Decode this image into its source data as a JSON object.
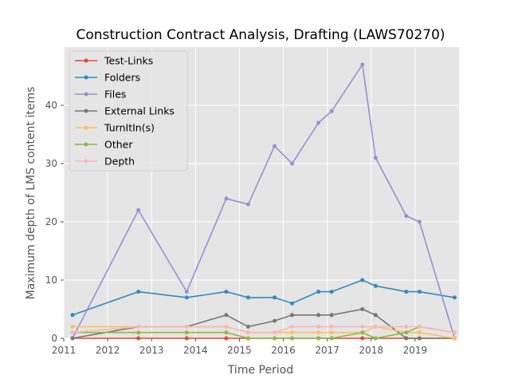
{
  "chart_data": {
    "type": "line",
    "title": "Construction Contract Analysis, Drafting (LAWS70270)",
    "xlabel": "Time Period",
    "ylabel": "Maximum depth of LMS content items",
    "xlim": [
      2011.0,
      2020.0
    ],
    "ylim": [
      0,
      50
    ],
    "x_ticks": [
      2011,
      2012,
      2013,
      2014,
      2015,
      2016,
      2017,
      2018,
      2019
    ],
    "y_ticks": [
      0,
      10,
      20,
      30,
      40
    ],
    "grid": true,
    "legend_position": "top-left",
    "background": "#e5e5e5",
    "series": [
      {
        "name": "Test-Links",
        "color": "#e24a33",
        "x": [
          2011.2,
          2012.7,
          2013.8,
          2014.7,
          2015.2,
          2015.8,
          2016.2,
          2016.8,
          2017.1,
          2017.8,
          2018.1,
          2018.8,
          2019.1,
          2019.9
        ],
        "values": [
          0,
          0,
          0,
          0,
          0,
          0,
          0,
          0,
          0,
          0,
          0,
          0,
          0,
          0
        ]
      },
      {
        "name": "Folders",
        "color": "#348abd",
        "x": [
          2011.2,
          2012.7,
          2013.8,
          2014.7,
          2015.2,
          2015.8,
          2016.2,
          2016.8,
          2017.1,
          2017.8,
          2018.1,
          2018.8,
          2019.1,
          2019.9
        ],
        "values": [
          4,
          8,
          7,
          8,
          7,
          7,
          6,
          8,
          8,
          10,
          9,
          8,
          8,
          7
        ]
      },
      {
        "name": "Files",
        "color": "#988ed5",
        "x": [
          2011.2,
          2012.7,
          2013.8,
          2014.7,
          2015.2,
          2015.8,
          2016.2,
          2016.8,
          2017.1,
          2017.8,
          2018.1,
          2018.8,
          2019.1,
          2019.9
        ],
        "values": [
          0,
          22,
          8,
          24,
          23,
          33,
          30,
          37,
          39,
          47,
          31,
          21,
          20,
          0
        ]
      },
      {
        "name": "External Links",
        "color": "#777777",
        "x": [
          2011.2,
          2012.7,
          2013.8,
          2014.7,
          2015.2,
          2015.8,
          2016.2,
          2016.8,
          2017.1,
          2017.8,
          2018.1,
          2018.8,
          2019.1,
          2019.9
        ],
        "values": [
          0,
          2,
          2,
          4,
          2,
          3,
          4,
          4,
          4,
          5,
          4,
          0,
          0,
          0
        ]
      },
      {
        "name": "TurnItIn(s)",
        "color": "#fbc15e",
        "x": [
          2011.2,
          2012.7,
          2013.8,
          2014.7,
          2015.2,
          2015.8,
          2016.2,
          2016.8,
          2017.1,
          2017.8,
          2018.1,
          2018.8,
          2019.1,
          2019.9
        ],
        "values": [
          2,
          2,
          2,
          2,
          1,
          1,
          1,
          1,
          1,
          1,
          2,
          1,
          1,
          0
        ]
      },
      {
        "name": "Other",
        "color": "#8eba42",
        "x": [
          2011.2,
          2012.7,
          2013.8,
          2014.7,
          2015.2,
          2015.8,
          2016.2,
          2016.8,
          2017.1,
          2017.8,
          2018.1,
          2018.8,
          2019.1,
          2019.9
        ],
        "values": [
          1,
          1,
          1,
          1,
          0,
          0,
          0,
          0,
          0,
          1,
          0,
          1,
          2,
          1
        ]
      },
      {
        "name": "Depth",
        "color": "#ffb5b8",
        "x": [
          2011.2,
          2012.7,
          2013.8,
          2014.7,
          2015.2,
          2015.8,
          2016.2,
          2016.8,
          2017.1,
          2017.8,
          2018.1,
          2018.8,
          2019.1,
          2019.9
        ],
        "values": [
          1,
          2,
          2,
          2,
          1,
          1,
          2,
          2,
          2,
          2,
          2,
          2,
          2,
          1
        ]
      }
    ]
  }
}
